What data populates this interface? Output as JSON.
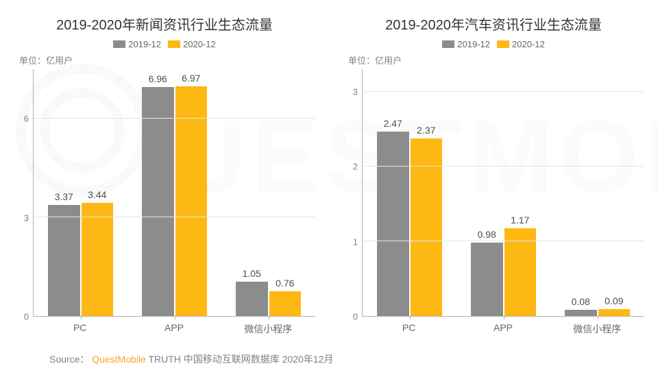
{
  "colors": {
    "series_a": "#8c8c8c",
    "series_b": "#fdb813",
    "grid": "#e6e6e6",
    "axis": "#b0b0b0",
    "text_title": "#333333",
    "text_axis": "#808080",
    "background": "#ffffff",
    "source_brand": "#f5a623"
  },
  "legend": {
    "a": "2019-12",
    "b": "2020-12"
  },
  "unit_label": "单位：亿用户",
  "left": {
    "title": "2019-2020年新闻资讯行业生态流量",
    "type": "bar",
    "ylim": [
      0,
      7.5
    ],
    "yticks": [
      0,
      3,
      6
    ],
    "categories": [
      "PC",
      "APP",
      "微信小程序"
    ],
    "series": [
      {
        "key": "a",
        "values": [
          3.37,
          6.96,
          1.05
        ]
      },
      {
        "key": "b",
        "values": [
          3.44,
          6.97,
          0.76
        ]
      }
    ]
  },
  "right": {
    "title": "2019-2020年汽车资讯行业生态流量",
    "type": "bar",
    "ylim": [
      0,
      3.3
    ],
    "yticks": [
      0,
      1,
      2,
      3
    ],
    "categories": [
      "PC",
      "APP",
      "微信小程序"
    ],
    "series": [
      {
        "key": "a",
        "values": [
          2.47,
          0.98,
          0.08
        ]
      },
      {
        "key": "b",
        "values": [
          2.37,
          1.17,
          0.09
        ]
      }
    ]
  },
  "source": {
    "prefix": "Source：",
    "brand": "QuestMobile",
    "suffix": " TRUTH 中国移动互联网数据库 2020年12月"
  }
}
